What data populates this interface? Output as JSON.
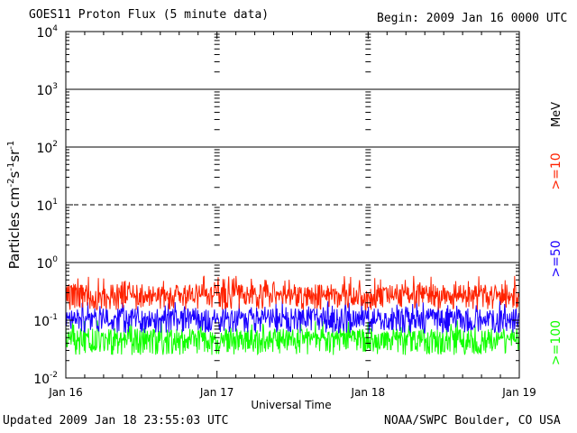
{
  "header": {
    "title": "GOES11 Proton Flux (5 minute data)",
    "begin": "Begin: 2009 Jan 16 0000 UTC"
  },
  "footer": {
    "updated": "Updated 2009 Jan 18 23:55:03 UTC",
    "source": "NOAA/SWPC Boulder, CO USA"
  },
  "chart_data": {
    "type": "line",
    "title": "GOES11 Proton Flux (5 minute data)",
    "xlabel": "Universal Time",
    "ylabel": "Particles cm-2 s-1 sr-1",
    "y_scale": "log",
    "ylim": [
      0.01,
      10000
    ],
    "y_ticks": [
      {
        "value": 0.01,
        "base": "10",
        "exp": "-2"
      },
      {
        "value": 0.1,
        "base": "10",
        "exp": "-1"
      },
      {
        "value": 1,
        "base": "10",
        "exp": "0"
      },
      {
        "value": 10,
        "base": "10",
        "exp": "1"
      },
      {
        "value": 100,
        "base": "10",
        "exp": "2"
      },
      {
        "value": 1000,
        "base": "10",
        "exp": "3"
      },
      {
        "value": 10000,
        "base": "10",
        "exp": "4"
      }
    ],
    "x_ticks": [
      "Jan 16",
      "Jan 17",
      "Jan 18",
      "Jan 19"
    ],
    "x_range": [
      "2009-01-16T00:00Z",
      "2009-01-19T00:00Z"
    ],
    "reference_lines": [
      {
        "value": 1,
        "style": "solid"
      },
      {
        "value": 10,
        "style": "dashed"
      },
      {
        "value": 100,
        "style": "solid"
      },
      {
        "value": 1000,
        "style": "solid"
      }
    ],
    "unit_label": "MeV",
    "series": [
      {
        "name": ">=10",
        "color": "#ff2200",
        "typical": 0.25,
        "low": 0.15,
        "high": 0.6
      },
      {
        "name": ">=50",
        "color": "#1a00ff",
        "typical": 0.1,
        "low": 0.06,
        "high": 0.22
      },
      {
        "name": ">=100",
        "color": "#11ff00",
        "typical": 0.045,
        "low": 0.025,
        "high": 0.1
      }
    ]
  }
}
